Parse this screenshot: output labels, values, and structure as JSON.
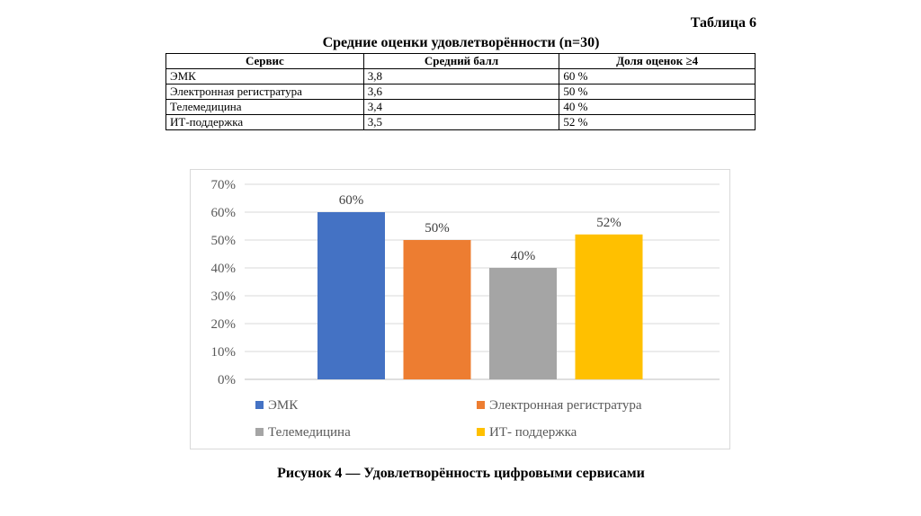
{
  "doc": {
    "table_number": "Таблица 6",
    "table_title": "Средние оценки удовлетворённости (n=30)",
    "caption": "Рисунок 4 — Удовлетворённость цифровыми сервисами"
  },
  "table": {
    "headers": [
      "Сервис",
      "Средний балл",
      "Доля оценок ≥4"
    ],
    "rows": [
      [
        "ЭМК",
        "3,8",
        "60 %"
      ],
      [
        "Электронная регистратура",
        "3,6",
        "50 %"
      ],
      [
        "Телемедицина",
        "3,4",
        "40 %"
      ],
      [
        "ИТ-поддержка",
        "3,5",
        "52 %"
      ]
    ]
  },
  "chart_data": {
    "type": "bar",
    "categories": [
      "ЭМК",
      "Электронная регистратура",
      "Телемедицина",
      "ИТ- поддержка"
    ],
    "values": [
      60,
      50,
      40,
      52
    ],
    "data_labels": [
      "60%",
      "50%",
      "40%",
      "52%"
    ],
    "colors": [
      "#4472c4",
      "#ed7d31",
      "#a5a5a5",
      "#ffc000"
    ],
    "ylim": [
      0,
      70
    ],
    "yticks": [
      "0%",
      "10%",
      "20%",
      "30%",
      "40%",
      "50%",
      "60%",
      "70%"
    ],
    "grid": true,
    "legend_position": "bottom"
  }
}
